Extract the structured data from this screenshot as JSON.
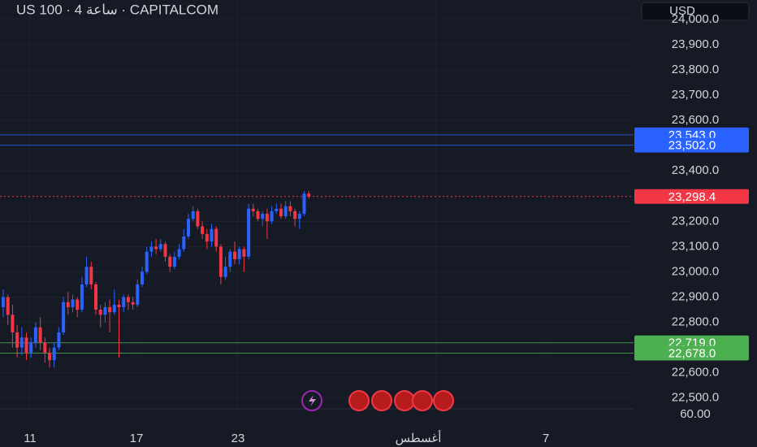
{
  "chart_data": {
    "type": "candlestick",
    "title": "US 100 · 4 ساعة · CAPITALCOM",
    "currency": "USD",
    "open": [
      22860,
      22900,
      22830,
      22760,
      22700,
      22740,
      22680,
      22720,
      22780,
      22720,
      22680,
      22650,
      22700,
      22760,
      22880,
      22860,
      22890,
      22850,
      22950,
      23020,
      22950,
      22850,
      22830,
      22860,
      22840,
      22870,
      22860,
      22900,
      22880,
      22870,
      22950,
      23000,
      23080,
      23100,
      23090,
      23110,
      23060,
      23020,
      23060,
      23090,
      23140,
      23210,
      23240,
      23180,
      23150,
      23120,
      23170,
      23100,
      22980,
      23020,
      23080,
      23050,
      23090,
      23060,
      23250,
      23240,
      23210,
      23230,
      23200,
      23240,
      23250,
      23220,
      23260,
      23240,
      23210,
      23230,
      23310
    ],
    "high": [
      22930,
      22910,
      22870,
      22790,
      22780,
      22760,
      22740,
      22800,
      22820,
      22740,
      22700,
      22720,
      22780,
      22900,
      22920,
      22910,
      22900,
      22980,
      23060,
      23040,
      22960,
      22870,
      22880,
      22890,
      22930,
      22890,
      22910,
      22910,
      22900,
      22970,
      23020,
      23100,
      23120,
      23130,
      23130,
      23120,
      23070,
      23080,
      23110,
      23170,
      23230,
      23260,
      23250,
      23200,
      23170,
      23190,
      23180,
      23110,
      23060,
      23090,
      23120,
      23100,
      23100,
      23270,
      23270,
      23250,
      23240,
      23250,
      23260,
      23270,
      23270,
      23280,
      23280,
      23250,
      23240,
      23320,
      23320
    ],
    "low": [
      22820,
      22790,
      22700,
      22660,
      22670,
      22650,
      22660,
      22700,
      22690,
      22640,
      22620,
      22620,
      22690,
      22750,
      22830,
      22840,
      22820,
      22840,
      22940,
      22930,
      22830,
      22780,
      22800,
      22760,
      22830,
      22660,
      22840,
      22850,
      22850,
      22860,
      22940,
      22990,
      23060,
      23070,
      23080,
      23040,
      23000,
      23010,
      23050,
      23080,
      23130,
      23200,
      23170,
      23130,
      23090,
      23100,
      23080,
      22950,
      22970,
      23000,
      23030,
      23030,
      23000,
      23050,
      23220,
      23200,
      23180,
      23130,
      23190,
      23230,
      23210,
      23210,
      23220,
      23180,
      23170,
      23220,
      23290
    ],
    "close": [
      22900,
      22830,
      22760,
      22700,
      22740,
      22680,
      22720,
      22780,
      22720,
      22680,
      22650,
      22700,
      22760,
      22880,
      22860,
      22890,
      22850,
      22950,
      23020,
      22950,
      22850,
      22830,
      22860,
      22840,
      22870,
      22860,
      22900,
      22880,
      22870,
      22950,
      23000,
      23080,
      23100,
      23090,
      23110,
      23060,
      23020,
      23060,
      23090,
      23140,
      23210,
      23240,
      23180,
      23150,
      23120,
      23170,
      23100,
      22980,
      23020,
      23080,
      23050,
      23090,
      23060,
      23250,
      23240,
      23210,
      23230,
      23200,
      23240,
      23250,
      23220,
      23260,
      23240,
      23210,
      23230,
      23310,
      23298.4
    ],
    "up_color": "#2962ff",
    "down_color": "#f23645",
    "ylim": [
      22467,
      24077
    ],
    "yticks": [
      {
        "value": 24000,
        "label": "24,000.0"
      },
      {
        "value": 23900,
        "label": "23,900.0"
      },
      {
        "value": 23800,
        "label": "23,800.0"
      },
      {
        "value": 23700,
        "label": "23,700.0"
      },
      {
        "value": 23600,
        "label": "23,600.0"
      },
      {
        "value": 23400,
        "label": "23,400.0"
      },
      {
        "value": 23200,
        "label": "23,200.0"
      },
      {
        "value": 23100,
        "label": "23,100.0"
      },
      {
        "value": 23000,
        "label": "23,000.0"
      },
      {
        "value": 22900,
        "label": "22,900.0"
      },
      {
        "value": 22800,
        "label": "22,800.0"
      },
      {
        "value": 22600,
        "label": "22,600.0"
      },
      {
        "value": 22500,
        "label": "22,500.0"
      }
    ],
    "levels": [
      {
        "value": 23543,
        "label": "23,543.0",
        "color": "#2962ff"
      },
      {
        "value": 23502,
        "label": "23,502.0",
        "color": "#2962ff"
      },
      {
        "value": 23298.4,
        "label": "23,298.4",
        "color": "#f23645"
      },
      {
        "value": 22719,
        "label": "22,719.0",
        "color": "#4caf50"
      },
      {
        "value": 22678,
        "label": "22,678.0",
        "color": "#4caf50"
      }
    ],
    "indicator_tick": {
      "value": 60,
      "label": "60.00"
    },
    "x_labels": [
      "11",
      "17",
      "23",
      "أغسطس",
      "7"
    ],
    "grid": true
  }
}
